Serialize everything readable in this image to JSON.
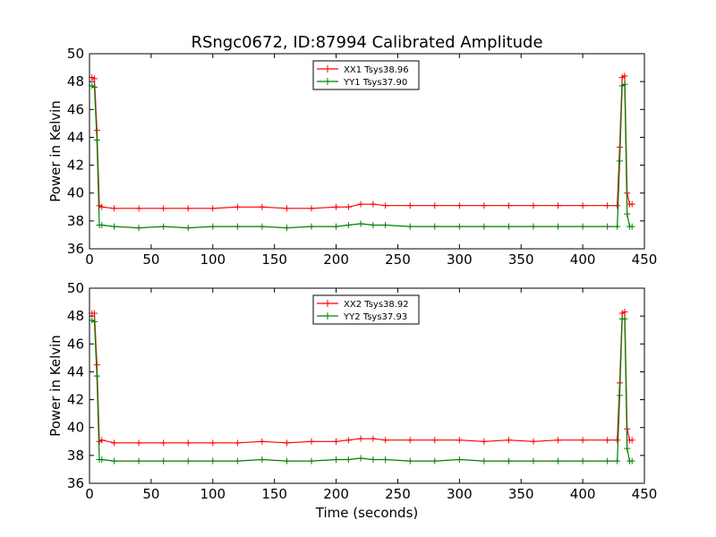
{
  "title": "RSngc0672, ID:87994 Calibrated Amplitude",
  "xlabel": "Time (seconds)",
  "colors": {
    "xx": "#ff0000",
    "yy": "#007f00"
  },
  "chart_data": [
    {
      "type": "line",
      "title": "RSngc0672, ID:87994 Calibrated Amplitude",
      "xlabel": "",
      "ylabel": "Power in Kelvin",
      "xlim": [
        0,
        450
      ],
      "ylim": [
        36,
        50
      ],
      "xticks": [
        "0",
        "50",
        "100",
        "150",
        "200",
        "250",
        "300",
        "350",
        "400",
        "450"
      ],
      "yticks": [
        "36",
        "38",
        "40",
        "42",
        "44",
        "46",
        "48",
        "50"
      ],
      "legend": "top-center",
      "grid": false,
      "series": [
        {
          "name": "XX1 Tsys38.96",
          "color": "#ff0000",
          "marker": "+",
          "x": [
            2,
            4,
            6,
            8,
            10,
            20,
            40,
            60,
            80,
            100,
            120,
            140,
            160,
            180,
            200,
            210,
            220,
            230,
            240,
            260,
            280,
            300,
            320,
            340,
            360,
            380,
            400,
            420,
            428,
            430,
            432,
            434,
            436,
            438,
            440
          ],
          "values": [
            48.3,
            48.2,
            44.5,
            39.1,
            39.0,
            38.9,
            38.9,
            38.9,
            38.9,
            38.9,
            39.0,
            39.0,
            38.9,
            38.9,
            39.0,
            39.0,
            39.2,
            39.2,
            39.1,
            39.1,
            39.1,
            39.1,
            39.1,
            39.1,
            39.1,
            39.1,
            39.1,
            39.1,
            39.1,
            43.3,
            48.3,
            48.4,
            40.0,
            39.2,
            39.2
          ]
        },
        {
          "name": "YY1 Tsys37.90",
          "color": "#007f00",
          "marker": "+",
          "x": [
            2,
            4,
            6,
            8,
            10,
            20,
            40,
            60,
            80,
            100,
            120,
            140,
            160,
            180,
            200,
            210,
            220,
            230,
            240,
            260,
            280,
            300,
            320,
            340,
            360,
            380,
            400,
            420,
            428,
            430,
            432,
            434,
            436,
            438,
            440
          ],
          "values": [
            47.7,
            47.6,
            43.8,
            37.7,
            37.7,
            37.6,
            37.5,
            37.6,
            37.5,
            37.6,
            37.6,
            37.6,
            37.5,
            37.6,
            37.6,
            37.7,
            37.8,
            37.7,
            37.7,
            37.6,
            37.6,
            37.6,
            37.6,
            37.6,
            37.6,
            37.6,
            37.6,
            37.6,
            37.6,
            42.3,
            47.7,
            47.8,
            38.5,
            37.6,
            37.6
          ]
        }
      ]
    },
    {
      "type": "line",
      "title": "",
      "xlabel": "Time (seconds)",
      "ylabel": "Power in Kelvin",
      "xlim": [
        0,
        450
      ],
      "ylim": [
        36,
        50
      ],
      "xticks": [
        "0",
        "50",
        "100",
        "150",
        "200",
        "250",
        "300",
        "350",
        "400",
        "450"
      ],
      "yticks": [
        "36",
        "38",
        "40",
        "42",
        "44",
        "46",
        "48",
        "50"
      ],
      "legend": "top-center",
      "grid": false,
      "series": [
        {
          "name": "XX2 Tsys38.92",
          "color": "#ff0000",
          "marker": "+",
          "x": [
            2,
            4,
            6,
            8,
            10,
            20,
            40,
            60,
            80,
            100,
            120,
            140,
            160,
            180,
            200,
            210,
            220,
            230,
            240,
            260,
            280,
            300,
            320,
            340,
            360,
            380,
            400,
            420,
            428,
            430,
            432,
            434,
            436,
            438,
            440
          ],
          "values": [
            48.2,
            48.2,
            44.5,
            39.0,
            39.1,
            38.9,
            38.9,
            38.9,
            38.9,
            38.9,
            38.9,
            39.0,
            38.9,
            39.0,
            39.0,
            39.1,
            39.2,
            39.2,
            39.1,
            39.1,
            39.1,
            39.1,
            39.0,
            39.1,
            39.0,
            39.1,
            39.1,
            39.1,
            39.1,
            43.2,
            48.2,
            48.3,
            39.9,
            39.1,
            39.1
          ]
        },
        {
          "name": "YY2 Tsys37.93",
          "color": "#007f00",
          "marker": "+",
          "x": [
            2,
            4,
            6,
            8,
            10,
            20,
            40,
            60,
            80,
            100,
            120,
            140,
            160,
            180,
            200,
            210,
            220,
            230,
            240,
            260,
            280,
            300,
            320,
            340,
            360,
            380,
            400,
            420,
            428,
            430,
            432,
            434,
            436,
            438,
            440
          ],
          "values": [
            47.7,
            47.6,
            43.7,
            37.7,
            37.7,
            37.6,
            37.6,
            37.6,
            37.6,
            37.6,
            37.6,
            37.7,
            37.6,
            37.6,
            37.7,
            37.7,
            37.8,
            37.7,
            37.7,
            37.6,
            37.6,
            37.7,
            37.6,
            37.6,
            37.6,
            37.6,
            37.6,
            37.6,
            37.6,
            42.3,
            47.8,
            47.8,
            38.5,
            37.6,
            37.6
          ]
        }
      ]
    }
  ]
}
